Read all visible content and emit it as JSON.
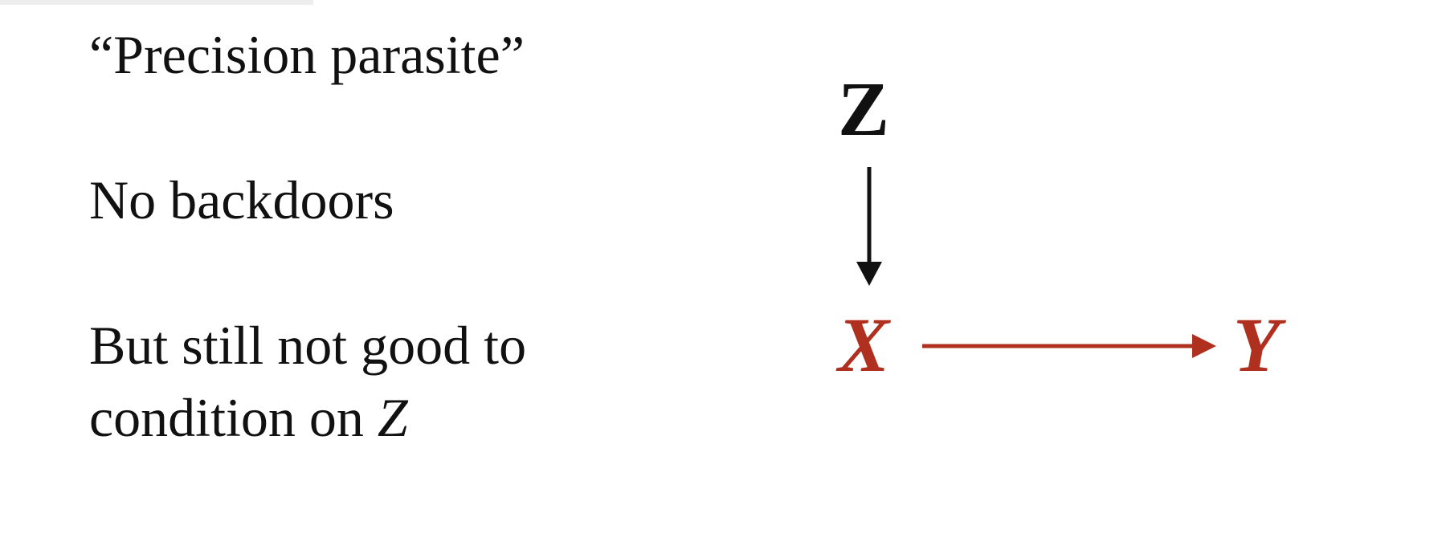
{
  "slide": {
    "title": "“Precision parasite”",
    "subtitle": "No backdoors",
    "note_line1": "But still not good to",
    "note_line2_text": "condition on ",
    "note_line2_var": "Z"
  },
  "diagram": {
    "nodes": {
      "z": "Z",
      "x": "X",
      "y": "Y"
    },
    "colors": {
      "default": "#111111",
      "highlight": "#b0301f"
    }
  }
}
